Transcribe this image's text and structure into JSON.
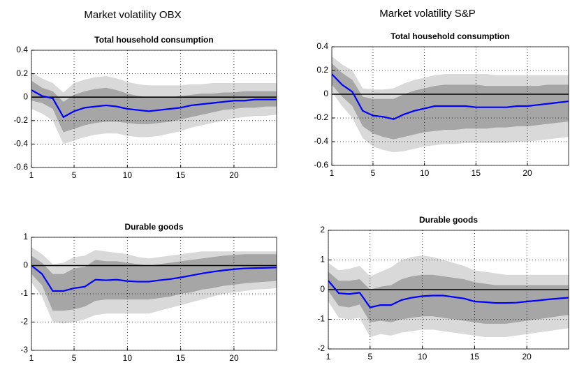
{
  "headers": [
    "Market volatility OBX",
    "Market volatility S&P"
  ],
  "chart_data": [
    {
      "type": "line",
      "title": "Total household consumption",
      "grid": true,
      "zero_line": true,
      "x": [
        1,
        2,
        3,
        4,
        5,
        6,
        7,
        8,
        9,
        10,
        11,
        12,
        13,
        14,
        15,
        16,
        17,
        18,
        19,
        20,
        21,
        22,
        23,
        24
      ],
      "xlim": [
        1,
        24
      ],
      "xticks": [
        1,
        5,
        10,
        15,
        20
      ],
      "ylim": [
        -0.6,
        0.4
      ],
      "yticks": [
        -0.6,
        -0.4,
        -0.2,
        0,
        0.2,
        0.4
      ],
      "color": "#0000ff",
      "values": [
        0.06,
        0.01,
        -0.01,
        -0.17,
        -0.12,
        -0.09,
        -0.08,
        -0.07,
        -0.08,
        -0.1,
        -0.11,
        -0.12,
        -0.11,
        -0.1,
        -0.09,
        -0.07,
        -0.06,
        -0.05,
        -0.04,
        -0.03,
        -0.03,
        -0.02,
        -0.02,
        -0.02
      ],
      "bands": [
        {
          "color": "#d9d9d9",
          "lower": [
            -0.1,
            -0.14,
            -0.2,
            -0.4,
            -0.37,
            -0.34,
            -0.32,
            -0.31,
            -0.31,
            -0.33,
            -0.34,
            -0.34,
            -0.33,
            -0.31,
            -0.29,
            -0.26,
            -0.24,
            -0.22,
            -0.2,
            -0.18,
            -0.17,
            -0.16,
            -0.16,
            -0.15
          ],
          "upper": [
            0.21,
            0.16,
            0.12,
            0.04,
            0.12,
            0.15,
            0.17,
            0.18,
            0.16,
            0.13,
            0.11,
            0.1,
            0.1,
            0.1,
            0.1,
            0.11,
            0.11,
            0.12,
            0.12,
            0.12,
            0.12,
            0.12,
            0.12,
            0.12
          ]
        },
        {
          "color": "#a6a6a6",
          "lower": [
            -0.03,
            -0.05,
            -0.1,
            -0.3,
            -0.27,
            -0.24,
            -0.22,
            -0.21,
            -0.21,
            -0.22,
            -0.23,
            -0.23,
            -0.22,
            -0.21,
            -0.19,
            -0.17,
            -0.15,
            -0.13,
            -0.11,
            -0.1,
            -0.09,
            -0.09,
            -0.08,
            -0.08
          ],
          "upper": [
            0.14,
            0.08,
            0.05,
            -0.04,
            0.02,
            0.05,
            0.07,
            0.08,
            0.06,
            0.03,
            0.01,
            0,
            0,
            0,
            0.01,
            0.02,
            0.03,
            0.03,
            0.04,
            0.04,
            0.05,
            0.05,
            0.05,
            0.05
          ]
        }
      ]
    },
    {
      "type": "line",
      "title": "Total household consumption",
      "grid": true,
      "zero_line": true,
      "x": [
        1,
        2,
        3,
        4,
        5,
        6,
        7,
        8,
        9,
        10,
        11,
        12,
        13,
        14,
        15,
        16,
        17,
        18,
        19,
        20,
        21,
        22,
        23,
        24
      ],
      "xlim": [
        1,
        24
      ],
      "xticks": [
        1,
        5,
        10,
        15,
        20
      ],
      "ylim": [
        -0.6,
        0.4
      ],
      "yticks": [
        -0.6,
        -0.4,
        -0.2,
        0,
        0.2,
        0.4
      ],
      "color": "#0000ff",
      "values": [
        0.17,
        0.08,
        0.02,
        -0.14,
        -0.18,
        -0.19,
        -0.21,
        -0.17,
        -0.14,
        -0.12,
        -0.1,
        -0.1,
        -0.1,
        -0.1,
        -0.11,
        -0.11,
        -0.11,
        -0.11,
        -0.1,
        -0.1,
        -0.09,
        -0.08,
        -0.07,
        -0.06
      ],
      "bands": [
        {
          "color": "#d9d9d9",
          "lower": [
            0.02,
            -0.1,
            -0.2,
            -0.37,
            -0.44,
            -0.47,
            -0.49,
            -0.48,
            -0.46,
            -0.44,
            -0.43,
            -0.42,
            -0.42,
            -0.41,
            -0.41,
            -0.41,
            -0.41,
            -0.41,
            -0.4,
            -0.4,
            -0.39,
            -0.38,
            -0.37,
            -0.36
          ],
          "upper": [
            0.32,
            0.25,
            0.2,
            0.05,
            0.04,
            0.04,
            0.05,
            0.09,
            0.12,
            0.14,
            0.16,
            0.17,
            0.17,
            0.17,
            0.17,
            0.17,
            0.16,
            0.16,
            0.16,
            0.16,
            0.16,
            0.16,
            0.16,
            0.16
          ]
        },
        {
          "color": "#a6a6a6",
          "lower": [
            0.08,
            -0.02,
            -0.1,
            -0.27,
            -0.33,
            -0.36,
            -0.38,
            -0.36,
            -0.34,
            -0.32,
            -0.31,
            -0.3,
            -0.3,
            -0.29,
            -0.29,
            -0.29,
            -0.28,
            -0.28,
            -0.27,
            -0.27,
            -0.26,
            -0.25,
            -0.24,
            -0.23
          ],
          "upper": [
            0.26,
            0.18,
            0.12,
            -0.02,
            -0.04,
            -0.04,
            -0.04,
            0,
            0.03,
            0.05,
            0.07,
            0.08,
            0.08,
            0.08,
            0.08,
            0.07,
            0.07,
            0.07,
            0.07,
            0.07,
            0.07,
            0.08,
            0.08,
            0.08
          ]
        }
      ]
    },
    {
      "type": "line",
      "title": "Durable goods",
      "grid": true,
      "zero_line": true,
      "x": [
        1,
        2,
        3,
        4,
        5,
        6,
        7,
        8,
        9,
        10,
        11,
        12,
        13,
        14,
        15,
        16,
        17,
        18,
        19,
        20,
        21,
        22,
        23,
        24
      ],
      "xlim": [
        1,
        24
      ],
      "xticks": [
        1,
        5,
        10,
        15,
        20
      ],
      "ylim": [
        -3,
        1
      ],
      "yticks": [
        -3,
        -2,
        -1,
        0,
        1
      ],
      "color": "#0000ff",
      "values": [
        0,
        -0.3,
        -0.9,
        -0.9,
        -0.8,
        -0.75,
        -0.5,
        -0.52,
        -0.5,
        -0.55,
        -0.57,
        -0.57,
        -0.52,
        -0.48,
        -0.42,
        -0.35,
        -0.28,
        -0.22,
        -0.17,
        -0.13,
        -0.1,
        -0.09,
        -0.08,
        -0.07
      ],
      "bands": [
        {
          "color": "#d9d9d9",
          "lower": [
            -0.6,
            -1.1,
            -2.0,
            -2.05,
            -2.0,
            -1.9,
            -1.75,
            -1.7,
            -1.7,
            -1.7,
            -1.7,
            -1.7,
            -1.6,
            -1.5,
            -1.4,
            -1.3,
            -1.2,
            -1.1,
            -1.0,
            -0.95,
            -0.9,
            -0.85,
            -0.83,
            -0.8
          ],
          "upper": [
            0.65,
            0.4,
            0.05,
            0.1,
            0.3,
            0.35,
            0.55,
            0.5,
            0.45,
            0.4,
            0.3,
            0.25,
            0.3,
            0.35,
            0.4,
            0.45,
            0.5,
            0.5,
            0.5,
            0.5,
            0.5,
            0.5,
            0.5,
            0.5
          ]
        },
        {
          "color": "#a6a6a6",
          "lower": [
            -0.3,
            -0.7,
            -1.6,
            -1.6,
            -1.55,
            -1.45,
            -1.25,
            -1.2,
            -1.2,
            -1.2,
            -1.2,
            -1.2,
            -1.15,
            -1.1,
            -1.0,
            -0.95,
            -0.85,
            -0.8,
            -0.72,
            -0.68,
            -0.63,
            -0.6,
            -0.57,
            -0.55
          ],
          "upper": [
            0.35,
            0.1,
            -0.3,
            -0.3,
            -0.1,
            -0.05,
            0.2,
            0.15,
            0.15,
            0.1,
            0.05,
            0,
            0.05,
            0.1,
            0.15,
            0.2,
            0.25,
            0.3,
            0.35,
            0.38,
            0.4,
            0.4,
            0.4,
            0.4
          ]
        }
      ]
    },
    {
      "type": "line",
      "title": "Durable goods",
      "grid": true,
      "zero_line": true,
      "x": [
        1,
        2,
        3,
        4,
        5,
        6,
        7,
        8,
        9,
        10,
        11,
        12,
        13,
        14,
        15,
        16,
        17,
        18,
        19,
        20,
        21,
        22,
        23,
        24
      ],
      "xlim": [
        1,
        24
      ],
      "xticks": [
        1,
        5,
        10,
        15,
        20
      ],
      "ylim": [
        -2,
        2
      ],
      "yticks": [
        -2,
        -1,
        0,
        1,
        2
      ],
      "color": "#0000ff",
      "values": [
        0.3,
        -0.12,
        -0.15,
        -0.1,
        -0.6,
        -0.52,
        -0.52,
        -0.35,
        -0.27,
        -0.22,
        -0.2,
        -0.2,
        -0.25,
        -0.3,
        -0.4,
        -0.42,
        -0.45,
        -0.45,
        -0.44,
        -0.4,
        -0.37,
        -0.33,
        -0.3,
        -0.27
      ],
      "bands": [
        {
          "color": "#d9d9d9",
          "lower": [
            -0.4,
            -0.95,
            -1.0,
            -0.95,
            -1.6,
            -1.5,
            -1.55,
            -1.45,
            -1.4,
            -1.35,
            -1.35,
            -1.4,
            -1.45,
            -1.5,
            -1.55,
            -1.6,
            -1.6,
            -1.6,
            -1.55,
            -1.5,
            -1.45,
            -1.4,
            -1.35,
            -1.3
          ],
          "upper": [
            0.9,
            0.65,
            0.7,
            0.8,
            0.45,
            0.6,
            0.75,
            1.0,
            1.1,
            1.15,
            1.1,
            1.0,
            0.9,
            0.8,
            0.65,
            0.6,
            0.55,
            0.5,
            0.5,
            0.5,
            0.5,
            0.5,
            0.5,
            0.5
          ]
        },
        {
          "color": "#a6a6a6",
          "lower": [
            -0.05,
            -0.55,
            -0.6,
            -0.5,
            -1.1,
            -1.05,
            -1.1,
            -1.0,
            -0.95,
            -0.9,
            -0.9,
            -0.95,
            -1.0,
            -1.05,
            -1.1,
            -1.15,
            -1.15,
            -1.15,
            -1.1,
            -1.05,
            -1.0,
            -0.95,
            -0.9,
            -0.85
          ],
          "upper": [
            0.6,
            0.3,
            0.3,
            0.35,
            0,
            0.1,
            0.15,
            0.35,
            0.45,
            0.5,
            0.5,
            0.45,
            0.4,
            0.35,
            0.25,
            0.2,
            0.15,
            0.15,
            0.15,
            0.15,
            0.15,
            0.15,
            0.15,
            0.15
          ]
        }
      ]
    }
  ]
}
